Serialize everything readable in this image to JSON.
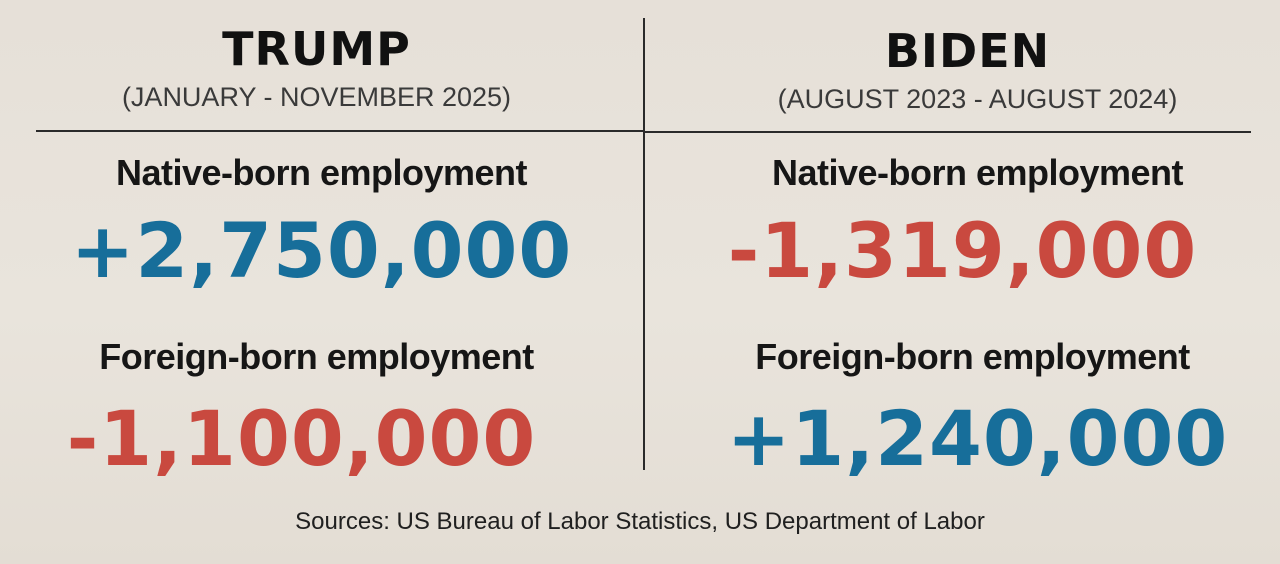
{
  "left": {
    "title": "TRUMP",
    "period": "(JANUARY - NOVEMBER 2025)",
    "native_label": "Native-born employment",
    "native_value": "+2,750,000",
    "foreign_label": "Foreign-born employment",
    "foreign_value": "-1,100,000"
  },
  "right": {
    "title": "BIDEN",
    "period": "(AUGUST 2023 - AUGUST 2024)",
    "native_label": "Native-born employment",
    "native_value": "-1,319,000",
    "foreign_label": "Foreign-born employment",
    "foreign_value": "+1,240,000"
  },
  "sources": "Sources: US Bureau of Labor Statistics, US Department of Labor",
  "colors": {
    "positive": "#176e9a",
    "negative": "#c9493f",
    "background": "#e8e2da",
    "text": "#141414"
  }
}
